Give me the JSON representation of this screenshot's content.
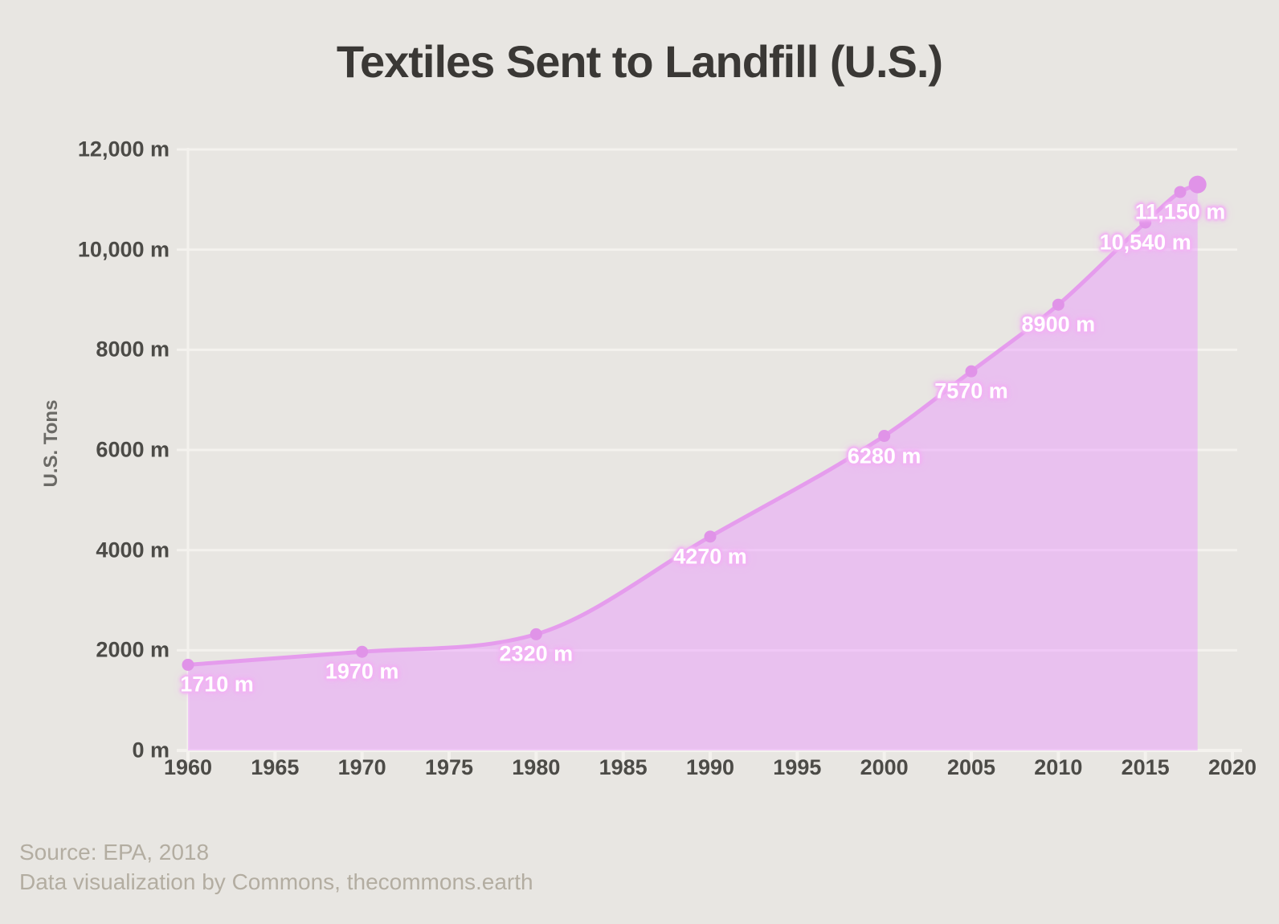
{
  "source": {
    "line1": "Source: EPA, 2018",
    "line2": "Data visualization by Commons, thecommons.earth"
  },
  "chart_data": {
    "type": "area",
    "title": "Textiles Sent to Landfill (U.S.)",
    "xlabel": "",
    "ylabel": "U.S. Tons",
    "x": [
      1960,
      1970,
      1980,
      1990,
      2000,
      2005,
      2010,
      2015,
      2017,
      2018
    ],
    "values": [
      1710,
      1970,
      2320,
      4270,
      6280,
      7570,
      8900,
      10540,
      11150,
      11300
    ],
    "point_labels": [
      "1710 m",
      "1970 m",
      "2320 m",
      "4270 m",
      "6280 m",
      "7570 m",
      "8900 m",
      "10,540 m",
      "11,150 m",
      null
    ],
    "label_dx": [
      36,
      0,
      0,
      0,
      0,
      0,
      0,
      0,
      0,
      0
    ],
    "label_dy": 25,
    "value_suffix": " m",
    "xlim": [
      1960,
      2020
    ],
    "ylim": [
      0,
      12000
    ],
    "x_ticks": [
      1960,
      1965,
      1970,
      1975,
      1980,
      1985,
      1990,
      1995,
      2000,
      2005,
      2010,
      2015,
      2020
    ],
    "y_ticks": [
      0,
      2000,
      4000,
      6000,
      8000,
      10000,
      12000
    ],
    "y_tick_labels": [
      "0 m",
      "2000 m",
      "4000 m",
      "6000 m",
      "8000 m",
      "10,000 m",
      "12,000 m"
    ],
    "grid": "horizontal",
    "legend": "none",
    "curve": "monotone",
    "colors": {
      "background": "#e8e6e2",
      "grid": "#f4f2ee",
      "fill": "rgba(235,148,255,0.45)",
      "line": "#e59ced",
      "dot": "#e093e8",
      "label_text": "#ffffff",
      "label_glow": "#f2b3f4",
      "title_text": "#3a3835",
      "tick_text": "#4c4b47",
      "axis_title_text": "#6b6a66",
      "source_text": "#b3ada1"
    }
  }
}
